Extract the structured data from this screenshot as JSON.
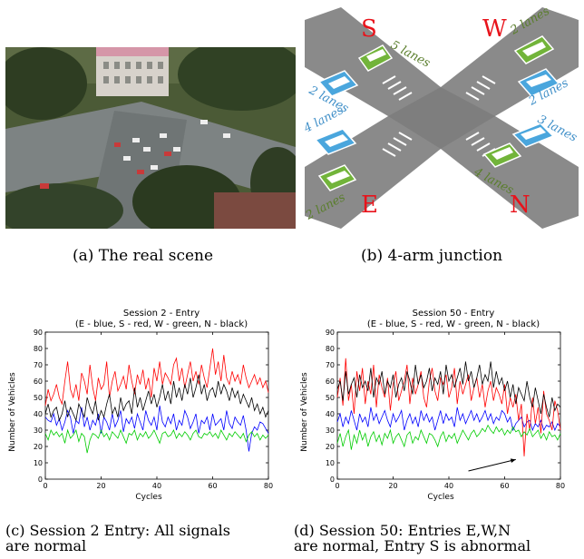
{
  "captions": {
    "a": "(a) The real scene",
    "b": "(b) 4-arm junction",
    "c_line1": "(c) Session 2 Entry:  All signals",
    "c_line2": "are normal",
    "d_line1": "(d) Session 50:  Entries E,W,N",
    "d_line2": "are normal, Entry S is abnormal"
  },
  "junction": {
    "letters": {
      "S": "S",
      "W": "W",
      "E": "E",
      "N": "N"
    },
    "lane_labels": {
      "s_out": "5 lanes",
      "w_out": "2 lanes",
      "w_in": "2 lanes",
      "s_in": "2 lanes",
      "e_in": "4 lanes",
      "e_out": "2 lanes",
      "n_in": "3 lanes",
      "n_out": "4 lanes"
    },
    "colors": {
      "entry_arrow": "#4aa6dd",
      "exit_arrow": "#72b43a",
      "letter": "#e8131b",
      "lane_text_blue": "#3f8fc8",
      "lane_text_green": "#5a7e2c",
      "road": "#8a8a8a"
    }
  },
  "chart_data": [
    {
      "type": "line",
      "title": "Session 2 - Entry",
      "subtitle": "(E - blue, S - red, W - green, N - black)",
      "xlabel": "Cycles",
      "ylabel": "Number of Vehicles",
      "xlim": [
        0,
        80
      ],
      "ylim": [
        0,
        90
      ],
      "xticks": [
        0,
        20,
        40,
        60,
        80
      ],
      "yticks": [
        0,
        10,
        20,
        30,
        40,
        50,
        60,
        70,
        80,
        90
      ],
      "grid": false,
      "series": [
        {
          "name": "E",
          "color": "#0000ff",
          "values": [
            38,
            36,
            35,
            40,
            33,
            37,
            30,
            35,
            42,
            38,
            28,
            36,
            34,
            44,
            32,
            38,
            30,
            36,
            33,
            40,
            28,
            38,
            35,
            30,
            40,
            32,
            36,
            42,
            29,
            37,
            34,
            38,
            31,
            40,
            35,
            30,
            42,
            36,
            33,
            38,
            30,
            45,
            35,
            32,
            38,
            34,
            40,
            30,
            36,
            33,
            42,
            38,
            31,
            35,
            40,
            28,
            36,
            34,
            38,
            30,
            40,
            33,
            35,
            37,
            30,
            42,
            34,
            31,
            38,
            35,
            33,
            39,
            30,
            17,
            28,
            32,
            30,
            35,
            34,
            31,
            28
          ]
        },
        {
          "name": "S",
          "color": "#ff0000",
          "values": [
            45,
            55,
            48,
            52,
            58,
            50,
            46,
            60,
            72,
            55,
            50,
            58,
            48,
            65,
            60,
            52,
            70,
            56,
            48,
            62,
            55,
            58,
            72,
            50,
            60,
            66,
            54,
            58,
            63,
            55,
            70,
            60,
            52,
            64,
            58,
            67,
            55,
            62,
            50,
            68,
            60,
            72,
            58,
            65,
            62,
            58,
            70,
            74,
            60,
            68,
            56,
            64,
            72,
            60,
            66,
            58,
            70,
            62,
            56,
            68,
            80,
            64,
            72,
            60,
            76,
            62,
            58,
            66,
            60,
            64,
            58,
            70,
            62,
            56,
            60,
            64,
            58,
            62,
            56,
            60,
            53
          ]
        },
        {
          "name": "W",
          "color": "#00cc00",
          "values": [
            28,
            24,
            30,
            27,
            29,
            26,
            28,
            22,
            30,
            25,
            27,
            30,
            23,
            28,
            26,
            16,
            24,
            28,
            27,
            25,
            30,
            26,
            28,
            24,
            29,
            27,
            25,
            30,
            26,
            22,
            28,
            27,
            30,
            24,
            28,
            26,
            29,
            25,
            27,
            30,
            26,
            22,
            28,
            29,
            26,
            27,
            30,
            25,
            28,
            26,
            29,
            27,
            24,
            28,
            30,
            26,
            25,
            28,
            27,
            29,
            26,
            28,
            25,
            30,
            27,
            24,
            28,
            26,
            29,
            27,
            25,
            28,
            23,
            27,
            29,
            26,
            28,
            24,
            27,
            25,
            27
          ]
        },
        {
          "name": "N",
          "color": "#000000",
          "values": [
            40,
            46,
            38,
            42,
            44,
            36,
            40,
            48,
            38,
            44,
            40,
            36,
            46,
            42,
            38,
            50,
            44,
            40,
            48,
            36,
            42,
            38,
            46,
            52,
            40,
            44,
            38,
            50,
            42,
            46,
            48,
            40,
            56,
            44,
            50,
            42,
            48,
            54,
            46,
            52,
            44,
            50,
            58,
            48,
            54,
            46,
            60,
            50,
            56,
            48,
            58,
            52,
            62,
            50,
            56,
            64,
            52,
            58,
            48,
            54,
            56,
            50,
            60,
            52,
            58,
            54,
            48,
            56,
            50,
            54,
            46,
            52,
            48,
            44,
            50,
            42,
            46,
            40,
            44,
            38,
            42
          ]
        }
      ]
    },
    {
      "type": "line",
      "title": "Session 50 - Entry",
      "subtitle": "(E - blue, S - red, W - green, N - black)",
      "xlabel": "Cycles",
      "ylabel": "Number of Vehicles",
      "xlim": [
        0,
        80
      ],
      "ylim": [
        0,
        90
      ],
      "xticks": [
        0,
        20,
        40,
        60,
        80
      ],
      "yticks": [
        0,
        10,
        20,
        30,
        40,
        50,
        60,
        70,
        80,
        90
      ],
      "grid": false,
      "annotation": {
        "type": "arrow",
        "from": [
          47,
          5
        ],
        "to": [
          64,
          12
        ]
      },
      "series": [
        {
          "name": "E",
          "color": "#0000ff",
          "values": [
            35,
            40,
            32,
            38,
            34,
            42,
            36,
            30,
            40,
            35,
            38,
            32,
            44,
            36,
            40,
            34,
            38,
            42,
            36,
            32,
            40,
            35,
            38,
            42,
            30,
            36,
            40,
            34,
            38,
            32,
            42,
            36,
            40,
            35,
            38,
            30,
            36,
            42,
            34,
            40,
            36,
            38,
            32,
            44,
            36,
            40,
            34,
            38,
            42,
            36,
            40,
            35,
            38,
            42,
            36,
            40,
            34,
            38,
            36,
            42,
            40,
            35,
            38,
            30,
            34,
            36,
            38,
            32,
            35,
            36,
            30,
            34,
            32,
            36,
            30,
            33,
            32,
            35,
            30,
            34,
            32
          ]
        },
        {
          "name": "S",
          "color": "#ff0000",
          "values": [
            50,
            62,
            45,
            74,
            48,
            58,
            40,
            66,
            54,
            68,
            46,
            60,
            52,
            70,
            44,
            64,
            56,
            50,
            62,
            42,
            58,
            66,
            48,
            54,
            60,
            70,
            46,
            62,
            52,
            58,
            66,
            50,
            44,
            60,
            68,
            54,
            48,
            62,
            58,
            64,
            50,
            56,
            68,
            46,
            60,
            52,
            58,
            64,
            48,
            56,
            62,
            50,
            58,
            44,
            54,
            60,
            48,
            56,
            52,
            46,
            58,
            40,
            50,
            44,
            52,
            36,
            46,
            14,
            40,
            30,
            50,
            34,
            44,
            28,
            54,
            40,
            36,
            30,
            48,
            42,
            30
          ]
        },
        {
          "name": "W",
          "color": "#00cc00",
          "values": [
            22,
            28,
            20,
            26,
            30,
            18,
            27,
            22,
            30,
            24,
            28,
            20,
            26,
            29,
            23,
            27,
            21,
            28,
            25,
            30,
            22,
            26,
            28,
            24,
            20,
            27,
            29,
            22,
            26,
            24,
            30,
            26,
            22,
            28,
            27,
            24,
            20,
            26,
            29,
            23,
            27,
            25,
            28,
            22,
            26,
            30,
            27,
            24,
            28,
            30,
            26,
            28,
            31,
            29,
            33,
            30,
            28,
            32,
            29,
            31,
            27,
            30,
            28,
            32,
            29,
            30,
            26,
            29,
            27,
            31,
            26,
            28,
            30,
            25,
            28,
            24,
            29,
            26,
            27,
            24,
            28
          ]
        },
        {
          "name": "N",
          "color": "#000000",
          "values": [
            55,
            60,
            48,
            66,
            52,
            58,
            62,
            50,
            64,
            56,
            60,
            54,
            68,
            50,
            62,
            58,
            66,
            52,
            60,
            56,
            64,
            50,
            58,
            62,
            54,
            66,
            60,
            52,
            70,
            58,
            64,
            56,
            60,
            68,
            54,
            62,
            58,
            66,
            52,
            70,
            60,
            64,
            56,
            62,
            68,
            58,
            72,
            60,
            66,
            56,
            62,
            70,
            58,
            64,
            60,
            72,
            56,
            66,
            58,
            62,
            54,
            60,
            50,
            58,
            46,
            56,
            52,
            48,
            60,
            50,
            44,
            56,
            48,
            40,
            52,
            44,
            38,
            50,
            42,
            46,
            44
          ]
        }
      ]
    }
  ]
}
